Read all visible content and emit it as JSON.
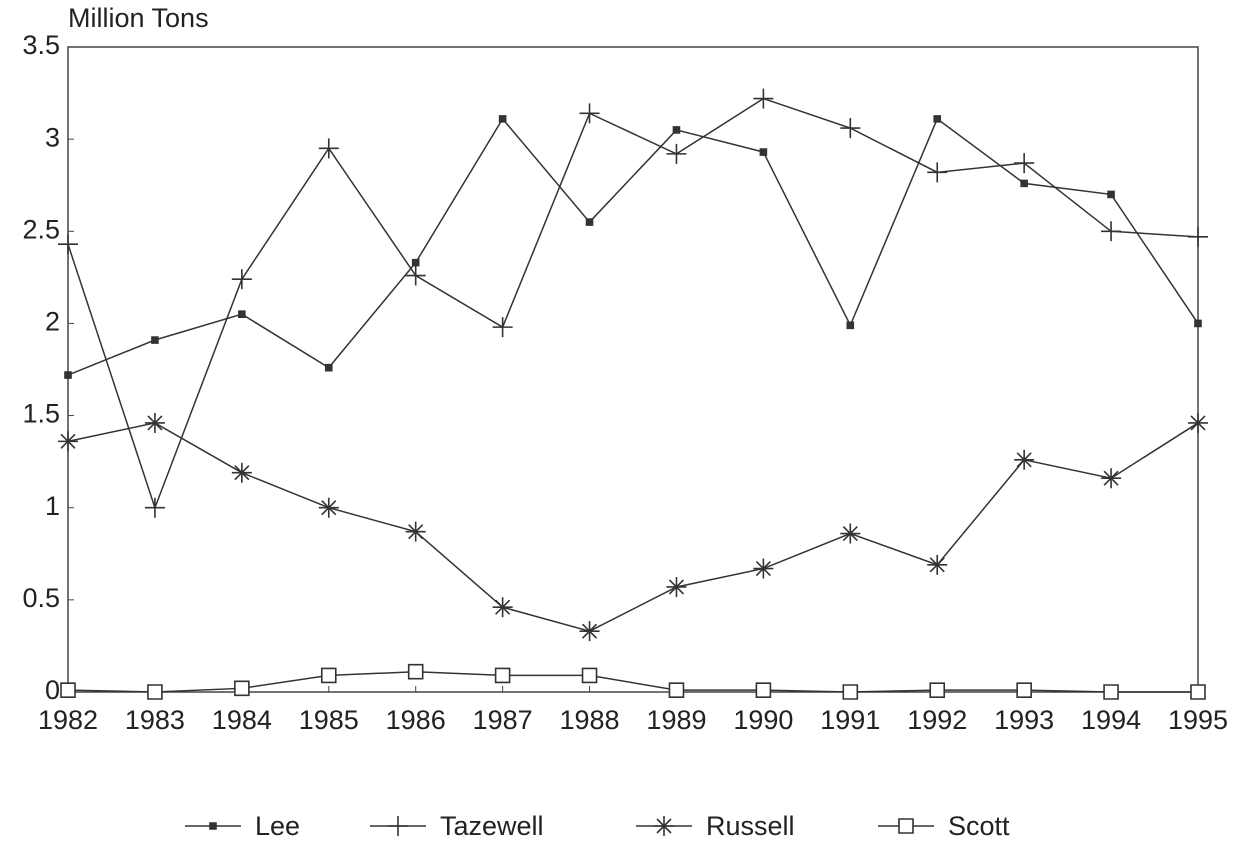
{
  "chart_data": {
    "type": "line",
    "y_label": "Million Tons",
    "x": [
      1982,
      1983,
      1984,
      1985,
      1986,
      1987,
      1988,
      1989,
      1990,
      1991,
      1992,
      1993,
      1994,
      1995
    ],
    "xlim": [
      1982,
      1995
    ],
    "xticks": [
      1982,
      1983,
      1984,
      1985,
      1986,
      1987,
      1988,
      1989,
      1990,
      1991,
      1992,
      1993,
      1994,
      1995
    ],
    "ylim": [
      0,
      3.5
    ],
    "yticks": [
      0,
      0.5,
      1,
      1.5,
      2,
      2.5,
      3,
      3.5
    ],
    "grid": false,
    "legend": "bottom",
    "series": [
      {
        "name": "Lee",
        "color": "#333333",
        "marker": "dot",
        "values": [
          1.72,
          1.91,
          2.05,
          1.76,
          2.33,
          3.11,
          2.55,
          3.05,
          2.93,
          1.99,
          3.11,
          2.76,
          2.7,
          2.0
        ]
      },
      {
        "name": "Tazewell",
        "color": "#333333",
        "marker": "plus",
        "values": [
          2.43,
          1.0,
          2.24,
          2.95,
          2.26,
          1.98,
          3.14,
          2.92,
          3.22,
          3.06,
          2.82,
          2.87,
          2.5,
          2.47
        ]
      },
      {
        "name": "Russell",
        "color": "#333333",
        "marker": "star",
        "values": [
          1.36,
          1.46,
          1.19,
          1.0,
          0.87,
          0.46,
          0.33,
          0.57,
          0.67,
          0.86,
          0.69,
          1.26,
          1.16,
          1.46
        ]
      },
      {
        "name": "Scott",
        "color": "#333333",
        "marker": "square",
        "values": [
          0.01,
          0.0,
          0.02,
          0.09,
          0.11,
          0.09,
          0.09,
          0.01,
          0.01,
          0.0,
          0.01,
          0.01,
          0.0,
          0.0
        ]
      }
    ]
  }
}
